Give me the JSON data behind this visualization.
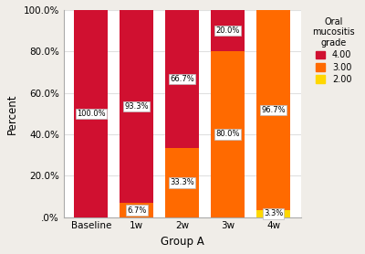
{
  "categories": [
    "Baseline",
    "1w",
    "2w",
    "3w",
    "4w"
  ],
  "grade4": [
    100.0,
    93.3,
    66.7,
    20.0,
    0.0
  ],
  "grade3": [
    0.0,
    6.7,
    33.3,
    80.0,
    96.7
  ],
  "grade2": [
    0.0,
    0.0,
    0.0,
    0.0,
    3.3
  ],
  "color4": "#D01030",
  "color3": "#FF6A00",
  "color2": "#FFD700",
  "xlabel": "Group A",
  "ylabel": "Percent",
  "legend_title": "Oral\nmucositis\ngrade",
  "yticks": [
    0.0,
    20.0,
    40.0,
    60.0,
    80.0,
    100.0
  ],
  "yticklabels": [
    ".0%",
    "20.0%",
    "40.0%",
    "60.0%",
    "80.0%",
    "100.0%"
  ],
  "annotation_labels": {
    "Baseline": {
      "grade4": "100.0%",
      "grade3": null,
      "grade2": null
    },
    "1w": {
      "grade4": "93.3%",
      "grade3": "6.7%",
      "grade2": null
    },
    "2w": {
      "grade4": "66.7%",
      "grade3": "33.3%",
      "grade2": null
    },
    "3w": {
      "grade4": "20.0%",
      "grade3": "80.0%",
      "grade2": null
    },
    "4w": {
      "grade4": null,
      "grade3": "96.7%",
      "grade2": "3.3%"
    }
  },
  "bar_width": 0.75,
  "plot_bg": "#ffffff",
  "fig_bg": "#f0ede8",
  "grid_color": "#e0e0e0"
}
